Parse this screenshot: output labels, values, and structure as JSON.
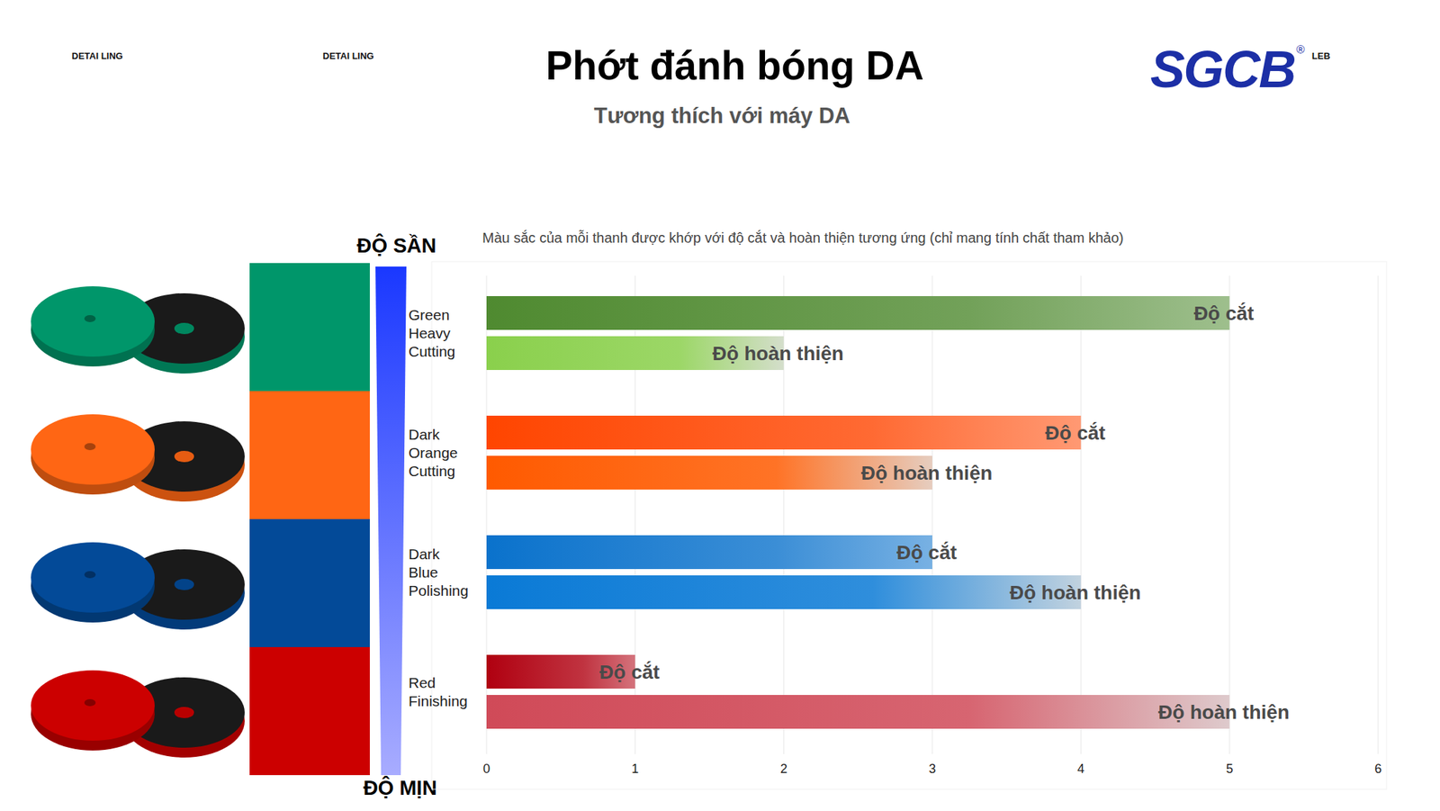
{
  "header": {
    "left_labels": [
      "DETAI LING",
      "DETAI LING"
    ],
    "logo": "SGCB",
    "logo_mark": "®",
    "logo_suffix": "LEB"
  },
  "chart_data": {
    "type": "bar",
    "orientation": "horizontal",
    "title": "Phớt đánh bóng DA",
    "subtitle": "Tương thích với máy DA",
    "note": "Màu sắc của mỗi thanh được khớp với độ cắt và hoàn thiện tương ứng (chỉ mang tính chất tham khảo)",
    "scale_labels": {
      "top": "ĐỘ SẦN",
      "bottom": "ĐỘ MỊN"
    },
    "categories": [
      "Green Heavy Cutting",
      "Dark Orange Cutting",
      "Dark Blue Polishing",
      "Red Finishing"
    ],
    "series": [
      {
        "name": "Độ cắt",
        "colors": [
          "#4f8a30",
          "#ff4500",
          "#0a72cc",
          "#b00010"
        ],
        "values": [
          5,
          4,
          3,
          1
        ]
      },
      {
        "name": "Độ hoàn thiện",
        "colors": [
          "#8ad04c",
          "#ff5a00",
          "#0a7ad6",
          "#d04a58"
        ],
        "values": [
          2,
          3,
          4,
          5
        ]
      }
    ],
    "xlim": [
      0,
      6
    ],
    "xticks": [
      0,
      1,
      2,
      3,
      4,
      5,
      6
    ],
    "grid": true
  }
}
